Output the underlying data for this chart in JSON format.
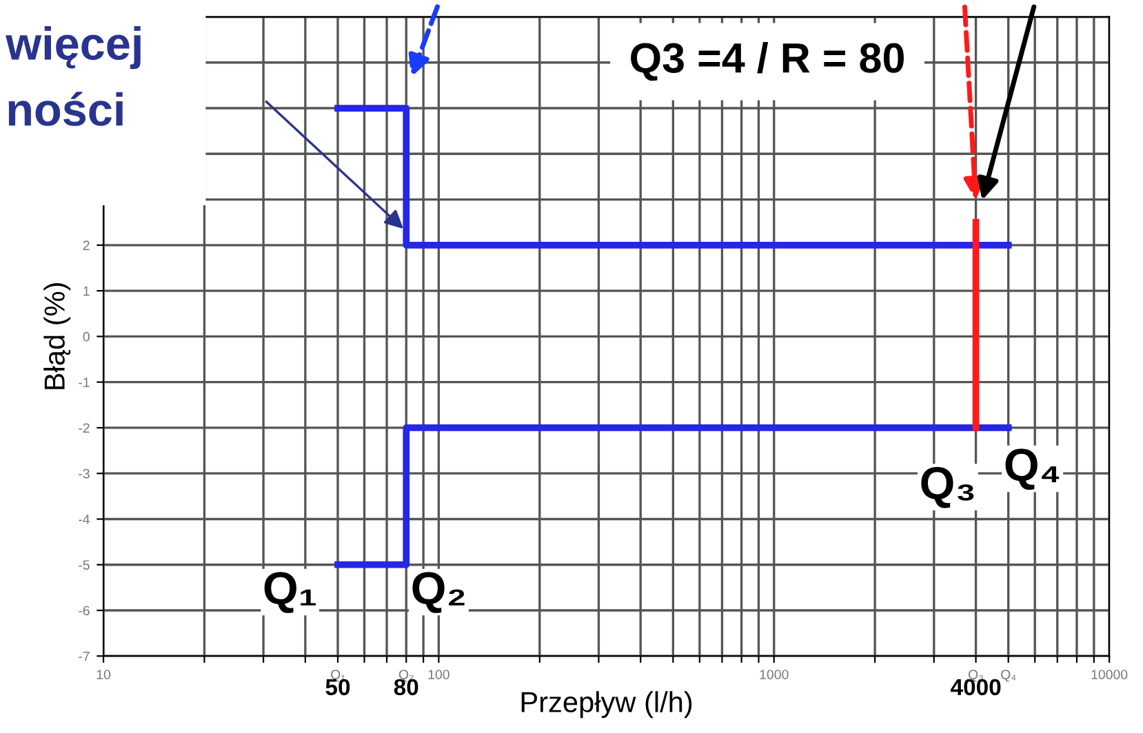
{
  "chart_data": {
    "type": "line",
    "xlabel": "Przepływ (l/h)",
    "ylabel": "Błąd (%)",
    "log": "x",
    "grid": true,
    "legend": false,
    "marker": "none",
    "line_style": "solid",
    "xlim": [
      10,
      10000
    ],
    "ylim": [
      -7,
      7
    ],
    "xticks": [
      10,
      {
        "value": 20,
        "label": null
      },
      {
        "value": 30,
        "label": null
      },
      {
        "value": 40,
        "label": null
      },
      {
        "value": 50,
        "label": "Q₁"
      },
      {
        "value": 60,
        "label": null
      },
      {
        "value": 70,
        "label": null
      },
      {
        "value": 80,
        "label": "Q₂"
      },
      {
        "value": 90,
        "label": null
      },
      100,
      {
        "value": 200,
        "label": null
      },
      {
        "value": 300,
        "label": null
      },
      {
        "value": 400,
        "label": null
      },
      {
        "value": 500,
        "label": null
      },
      {
        "value": 600,
        "label": null
      },
      {
        "value": 700,
        "label": null
      },
      {
        "value": 800,
        "label": null
      },
      {
        "value": 900,
        "label": null
      },
      1000,
      {
        "value": 2000,
        "label": null
      },
      {
        "value": 3000,
        "label": null
      },
      {
        "value": 4000,
        "label": "Q₃"
      },
      {
        "value": 5000,
        "label": "Q₄"
      },
      {
        "value": 6000,
        "label": null
      },
      {
        "value": 7000,
        "label": null
      },
      {
        "value": 8000,
        "label": null
      },
      {
        "value": 9000,
        "label": null
      },
      10000
    ],
    "yticks": [
      -7,
      -6,
      -5,
      -4,
      -3,
      -2,
      -1,
      0,
      1,
      2,
      {
        "value": 3,
        "label": null
      },
      {
        "value": 4,
        "label": null
      },
      {
        "value": 5,
        "label": null
      },
      {
        "value": 6,
        "label": null
      },
      {
        "value": 7,
        "label": null
      }
    ],
    "series": [
      {
        "x": [
          50,
          80,
          80,
          5000
        ],
        "values": [
          5,
          5,
          2,
          2
        ],
        "color": "#2626e6"
      },
      {
        "x": [
          50,
          80,
          80,
          5000
        ],
        "values": [
          -5,
          -5,
          -2,
          -2
        ],
        "color": "#2626e6"
      },
      {
        "x": [
          4000,
          4000
        ],
        "values": [
          -2,
          2.5
        ],
        "color": "#ff1a1a"
      }
    ],
    "annotations": [
      "50",
      "80",
      "4000",
      "Q₁",
      "Q₂",
      "Q₃",
      "Q₄",
      "Q3 =4 / R = 80",
      "więcej",
      "ności"
    ]
  }
}
